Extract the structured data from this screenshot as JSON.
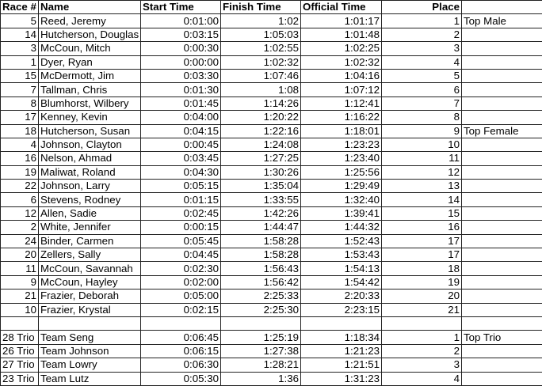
{
  "headers": [
    "Race #",
    "Name",
    "Start Time",
    "Finish Time",
    "Official Time",
    "Place",
    ""
  ],
  "rows": [
    [
      "5",
      "Reed, Jeremy",
      "0:01:00",
      "1:02",
      "1:01:17",
      "1",
      "Top Male"
    ],
    [
      "14",
      "Hutcherson, Douglas",
      "0:03:15",
      "1:05:03",
      "1:01:48",
      "2",
      ""
    ],
    [
      "3",
      "McCoun, Mitch",
      "0:00:30",
      "1:02:55",
      "1:02:25",
      "3",
      ""
    ],
    [
      "1",
      "Dyer, Ryan",
      "0:00:00",
      "1:02:32",
      "1:02:32",
      "4",
      ""
    ],
    [
      "15",
      "McDermott, Jim",
      "0:03:30",
      "1:07:46",
      "1:04:16",
      "5",
      ""
    ],
    [
      "7",
      "Tallman, Chris",
      "0:01:30",
      "1:08",
      "1:07:12",
      "6",
      ""
    ],
    [
      "8",
      "Blumhorst, Wilbery",
      "0:01:45",
      "1:14:26",
      "1:12:41",
      "7",
      ""
    ],
    [
      "17",
      "Kenney, Kevin",
      "0:04:00",
      "1:20:22",
      "1:16:22",
      "8",
      ""
    ],
    [
      "18",
      "Hutcherson, Susan",
      "0:04:15",
      "1:22:16",
      "1:18:01",
      "9",
      "Top Female"
    ],
    [
      "4",
      "Johnson, Clayton",
      "0:00:45",
      "1:24:08",
      "1:23:23",
      "10",
      ""
    ],
    [
      "16",
      "Nelson, Ahmad",
      "0:03:45",
      "1:27:25",
      "1:23:40",
      "11",
      ""
    ],
    [
      "19",
      "Maliwat, Roland",
      "0:04:30",
      "1:30:26",
      "1:25:56",
      "12",
      ""
    ],
    [
      "22",
      "Johnson, Larry",
      "0:05:15",
      "1:35:04",
      "1:29:49",
      "13",
      ""
    ],
    [
      "6",
      "Stevens, Rodney",
      "0:01:15",
      "1:33:55",
      "1:32:40",
      "14",
      ""
    ],
    [
      "12",
      "Allen, Sadie",
      "0:02:45",
      "1:42:26",
      "1:39:41",
      "15",
      ""
    ],
    [
      "2",
      "White, Jennifer",
      "0:00:15",
      "1:44:47",
      "1:44:32",
      "16",
      ""
    ],
    [
      "24",
      "Binder, Carmen",
      "0:05:45",
      "1:58:28",
      "1:52:43",
      "17",
      ""
    ],
    [
      "20",
      "Zellers, Sally",
      "0:04:45",
      "1:58:28",
      "1:53:43",
      "17",
      ""
    ],
    [
      "11",
      "McCoun, Savannah",
      "0:02:30",
      "1:56:43",
      "1:54:13",
      "18",
      ""
    ],
    [
      "9",
      "McCoun, Hayley",
      "0:02:00",
      "1:56:42",
      "1:54:42",
      "19",
      ""
    ],
    [
      "21",
      "Frazier, Deborah",
      "0:05:00",
      "2:25:33",
      "2:20:33",
      "20",
      ""
    ],
    [
      "10",
      "Frazier, Krystal",
      "0:02:15",
      "2:25:30",
      "2:23:15",
      "21",
      ""
    ]
  ],
  "trio_rows": [
    [
      "28 Trio",
      "Team Seng",
      "0:06:45",
      "1:25:19",
      "1:18:34",
      "1",
      "Top Trio"
    ],
    [
      "26 Trio",
      "Team Johnson",
      "0:06:15",
      "1:27:38",
      "1:21:23",
      "2",
      ""
    ],
    [
      "27 Trio",
      "Team Lowry",
      "0:06:30",
      "1:28:21",
      "1:21:51",
      "3",
      ""
    ],
    [
      "23 Trio",
      "Team Lutz",
      "0:05:30",
      "1:36",
      "1:31:23",
      "4",
      ""
    ]
  ]
}
